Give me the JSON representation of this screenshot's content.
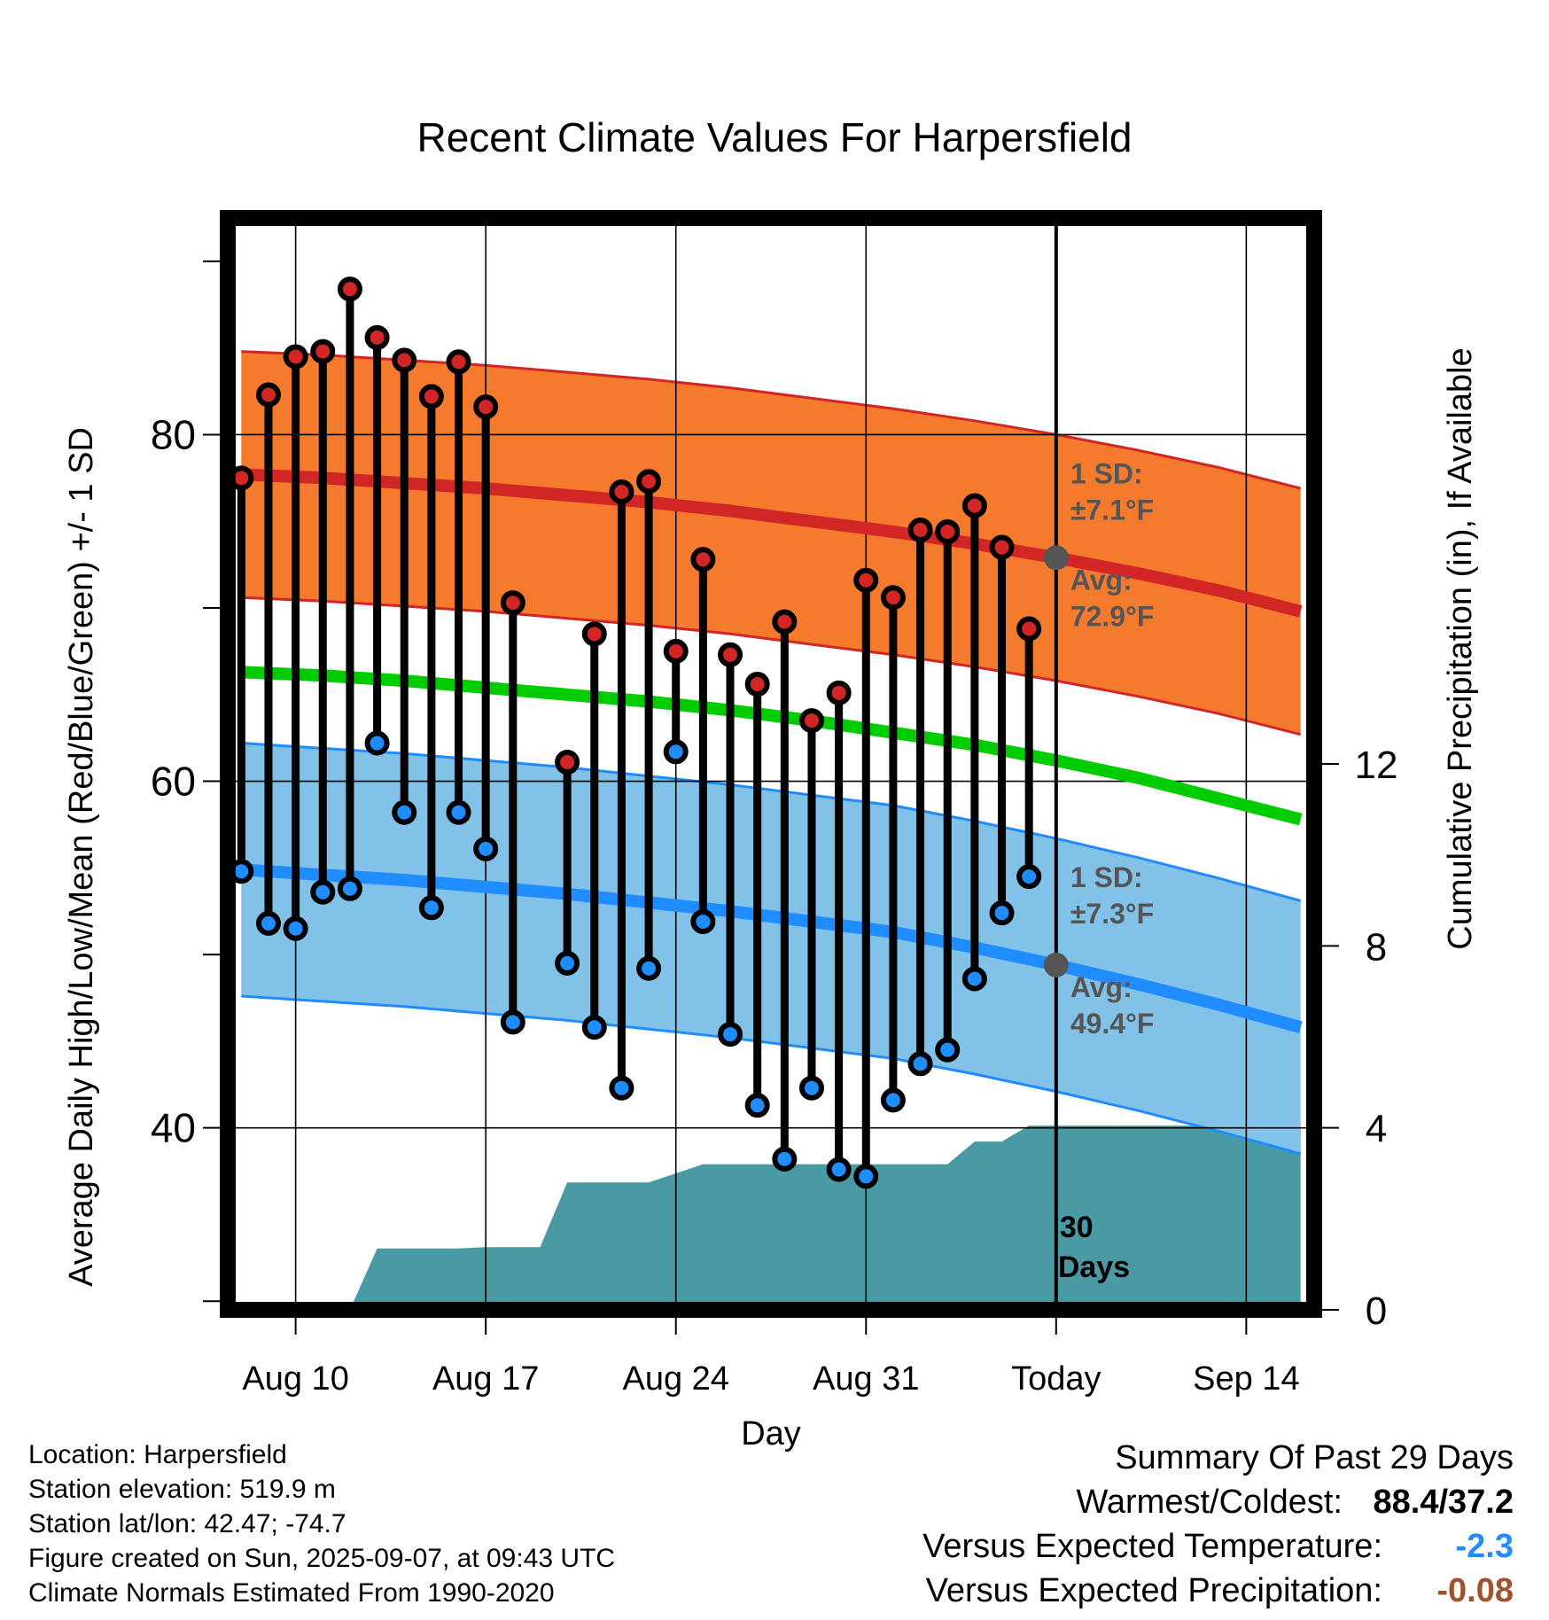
{
  "title": "Recent Climate Values For Harpersfield",
  "colors": {
    "high_band": "#f47a2e",
    "high_line": "#d22626",
    "low_band": "#83c2e8",
    "low_line": "#1f8cff",
    "mean_line": "#00cc00",
    "precip_fill": "#4a9aa5",
    "high_dot": "#d22626",
    "low_dot": "#1f8cff",
    "annotation": "#555555",
    "anomaly_temp": "#1f8cff",
    "anomaly_precip": "#a0522d"
  },
  "chart_data": {
    "type": "line",
    "title": "Recent Climate Values For Harpersfield",
    "xlabel": "Day",
    "ylabel": "Average Daily High/Low/Mean (Red/Blue/Green) +/- 1 SD",
    "y2label": "Cumulative Precipitation (in), If Available",
    "x_dates": [
      "Aug 8",
      "Aug 9",
      "Aug 10",
      "Aug 11",
      "Aug 12",
      "Aug 13",
      "Aug 14",
      "Aug 15",
      "Aug 16",
      "Aug 17",
      "Aug 18",
      "Aug 19",
      "Aug 20",
      "Aug 21",
      "Aug 22",
      "Aug 23",
      "Aug 24",
      "Aug 25",
      "Aug 26",
      "Aug 27",
      "Aug 28",
      "Aug 29",
      "Aug 30",
      "Aug 31",
      "Sep 1",
      "Sep 2",
      "Sep 3",
      "Sep 4",
      "Sep 5",
      "Sep 6",
      "Sep 7",
      "Sep 8",
      "Sep 9",
      "Sep 10",
      "Sep 11",
      "Sep 12",
      "Sep 13",
      "Sep 14",
      "Sep 15",
      "Sep 16"
    ],
    "xlim": [
      "Aug 7.5",
      "Sep 16.5"
    ],
    "x_ticks": [
      "Aug 10",
      "Aug 17",
      "Aug 24",
      "Aug 31",
      "Today",
      "Sep 14"
    ],
    "today": "Sep 7",
    "ylim": [
      29.5,
      92.5
    ],
    "y_ticks": [
      40,
      60,
      80
    ],
    "y2lim": [
      0,
      24
    ],
    "y2_ticks": [
      0,
      4,
      8,
      12
    ],
    "daily": {
      "dates": [
        "Aug 8",
        "Aug 9",
        "Aug 10",
        "Aug 11",
        "Aug 12",
        "Aug 13",
        "Aug 14",
        "Aug 15",
        "Aug 16",
        "Aug 17",
        "Aug 18",
        "Aug 20",
        "Aug 21",
        "Aug 22",
        "Aug 23",
        "Aug 24",
        "Aug 25",
        "Aug 26",
        "Aug 27",
        "Aug 28",
        "Aug 29",
        "Aug 30",
        "Aug 31",
        "Sep 1",
        "Sep 2",
        "Sep 3",
        "Sep 4",
        "Sep 5",
        "Sep 6"
      ],
      "high": [
        77.5,
        82.3,
        84.5,
        84.8,
        88.4,
        85.6,
        84.3,
        82.2,
        84.2,
        81.6,
        70.3,
        61.1,
        68.5,
        76.7,
        77.3,
        67.5,
        72.8,
        67.3,
        65.6,
        69.2,
        63.5,
        65.1,
        71.6,
        70.6,
        74.5,
        74.4,
        75.9,
        73.5,
        68.8
      ],
      "low": [
        54.8,
        51.8,
        51.5,
        53.6,
        53.8,
        62.2,
        58.2,
        52.7,
        58.2,
        56.1,
        46.1,
        49.5,
        45.8,
        42.3,
        49.2,
        61.7,
        51.9,
        45.4,
        41.3,
        38.2,
        42.3,
        37.6,
        37.2,
        41.6,
        43.7,
        44.5,
        48.6,
        52.4,
        54.5
      ]
    },
    "normals": {
      "dates": [
        "Aug 8",
        "Aug 11",
        "Aug 14",
        "Aug 17",
        "Aug 20",
        "Aug 23",
        "Aug 26",
        "Aug 29",
        "Sep 1",
        "Sep 4",
        "Sep 7",
        "Sep 10",
        "Sep 13",
        "Sep 16"
      ],
      "avg_high": [
        77.7,
        77.5,
        77.2,
        76.9,
        76.5,
        76.1,
        75.6,
        75.0,
        74.4,
        73.7,
        72.9,
        72.0,
        71.0,
        69.8
      ],
      "high_sd": 7.1,
      "avg_low": [
        54.9,
        54.6,
        54.3,
        53.9,
        53.5,
        53.0,
        52.5,
        51.9,
        51.3,
        50.4,
        49.4,
        48.3,
        47.1,
        45.8
      ],
      "low_sd": 7.3,
      "avg_mean": [
        66.3,
        66.1,
        65.8,
        65.4,
        65.0,
        64.6,
        64.1,
        63.5,
        62.8,
        62.1,
        61.2,
        60.2,
        59.0,
        57.8
      ]
    },
    "precip_cumulative": {
      "dates": [
        "Aug 10",
        "Aug 11",
        "Aug 12",
        "Aug 13",
        "Aug 14",
        "Aug 15",
        "Aug 16",
        "Aug 17",
        "Aug 18",
        "Aug 19",
        "Aug 20",
        "Aug 21",
        "Aug 22",
        "Aug 23",
        "Aug 24",
        "Aug 25",
        "Aug 26",
        "Aug 27",
        "Aug 28",
        "Aug 29",
        "Aug 30",
        "Aug 31",
        "Sep 1",
        "Sep 2",
        "Sep 3",
        "Sep 4",
        "Sep 5",
        "Sep 6",
        "Sep 7",
        "Sep 16"
      ],
      "values": [
        0,
        0,
        0,
        1.35,
        1.35,
        1.35,
        1.35,
        1.38,
        1.38,
        1.38,
        2.8,
        2.8,
        2.8,
        2.8,
        3.0,
        3.2,
        3.2,
        3.2,
        3.2,
        3.2,
        3.2,
        3.2,
        3.2,
        3.2,
        3.2,
        3.7,
        3.7,
        4.05,
        4.05,
        4.05
      ]
    },
    "annotations": {
      "high_sd_label": "1 SD:",
      "high_sd_value": "±7.1°F",
      "high_avg_label": "Avg:",
      "high_avg_value": "72.9°F",
      "low_sd_label": "1 SD:",
      "low_sd_value": "±7.3°F",
      "low_avg_label": "Avg:",
      "low_avg_value": "49.4°F",
      "days_number": "30",
      "days_label": "Days"
    }
  },
  "footer": {
    "location": "Location: Harpersfield",
    "elevation": "Station elevation: 519.9 m",
    "latlon": "Station lat/lon: 42.47; -74.7",
    "created": "Figure created on Sun, 2025-09-07, at 09:43 UTC",
    "normals": "Climate Normals Estimated From 1990-2020"
  },
  "summary": {
    "heading": "Summary Of Past 29 Days",
    "warmest_coldest_label": "Warmest/Coldest:",
    "warmest_coldest_value": "88.4/37.2",
    "temp_label": "Versus Expected Temperature:",
    "temp_value": "-2.3",
    "precip_label": "Versus Expected Precipitation:",
    "precip_value": "-0.08"
  }
}
